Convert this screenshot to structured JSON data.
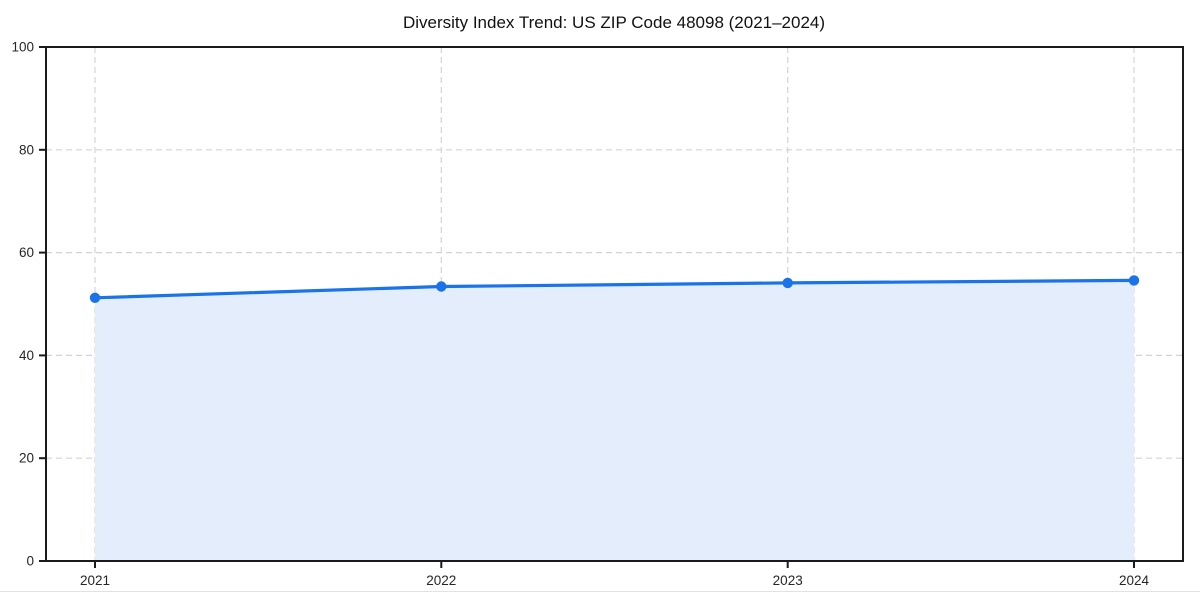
{
  "figure": {
    "background": "#ffffff"
  },
  "chart_data": {
    "type": "area",
    "title": "Diversity Index Trend: US ZIP Code 48098 (2021–2024)",
    "x": [
      "2021",
      "2022",
      "2023",
      "2024"
    ],
    "series": [
      {
        "name": "Diversity Index",
        "values": [
          51.2,
          53.4,
          54.1,
          54.6
        ]
      }
    ],
    "xlabel": "",
    "ylabel": "",
    "ylim": [
      0,
      100
    ],
    "yticks": [
      0,
      20,
      40,
      60,
      80,
      100
    ],
    "grid": true,
    "grid_style": "dashed",
    "legend_position": "none",
    "colors": {
      "line": "#1a73e8",
      "marker": "#1a73e8",
      "fill": "#e4edfc",
      "grid": "#d4d4d4",
      "axis": "#1a1a1a",
      "tick_label": "#262626",
      "title": "#111111"
    }
  }
}
